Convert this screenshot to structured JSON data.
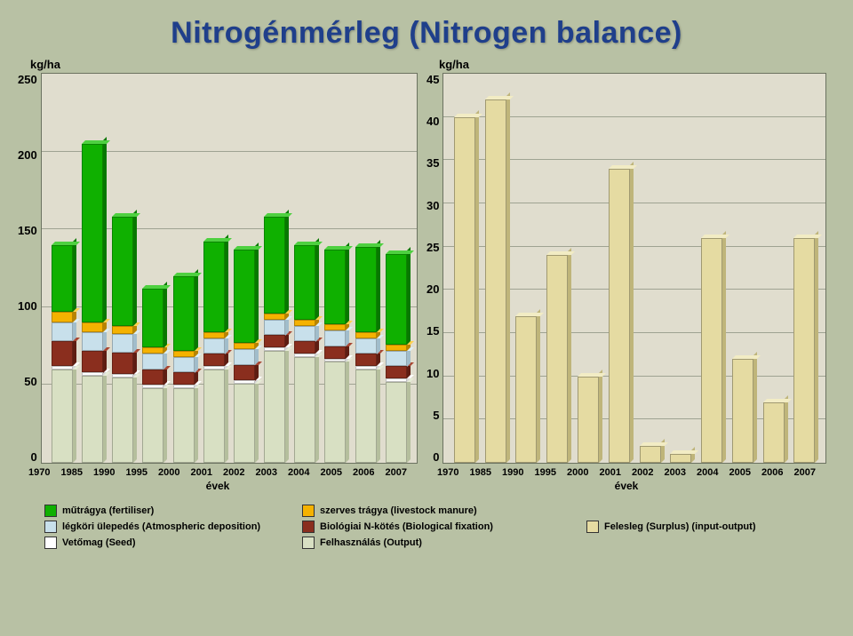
{
  "title": "Nitrogénmérleg (Nitrogen balance)",
  "title_color": "#1f3f8b",
  "background_color": "#b8c1a4",
  "plot_background_color": "#e0ddce",
  "grid_color": "#9fa392",
  "left_chart": {
    "type": "stacked-bar-3d",
    "axis_label": "kg/ha",
    "x_title": "évek",
    "categories": [
      "1970",
      "1985",
      "1990",
      "1995",
      "2000",
      "2001",
      "2002",
      "2003",
      "2004",
      "2005",
      "2006",
      "2007"
    ],
    "ymin": 0,
    "ymax": 250,
    "ytick_step": 50,
    "series": [
      {
        "key": "felhasznalas",
        "label": "Felhasználás (Output)",
        "color": "#d8e0c3",
        "color_top": "#e6ecd6",
        "color_side": "#b5bf9d",
        "values": [
          60,
          56,
          55,
          48,
          48,
          60,
          51,
          72,
          68,
          65,
          60,
          52
        ]
      },
      {
        "key": "vetomag",
        "label": "Vetőmag (Seed)",
        "color": "#ffffff",
        "color_top": "#ffffff",
        "color_side": "#d5d5d5",
        "values": [
          2,
          2,
          2,
          2,
          2,
          2,
          2,
          2,
          2,
          2,
          2,
          2
        ]
      },
      {
        "key": "biologiai",
        "label": "Biológiai N-kötés (Biological fixation)",
        "color": "#8a2e1e",
        "color_top": "#a84733",
        "color_side": "#5e1d12",
        "values": [
          16,
          14,
          14,
          10,
          8,
          8,
          10,
          8,
          8,
          8,
          8,
          8
        ]
      },
      {
        "key": "legkori",
        "label": "légköri ülepedés (Atmospheric deposition)",
        "color": "#c8e0eb",
        "color_top": "#dceef5",
        "color_side": "#a1bdcb",
        "values": [
          12,
          12,
          12,
          10,
          10,
          10,
          10,
          10,
          10,
          10,
          10,
          10
        ]
      },
      {
        "key": "szerves",
        "label": "szerves trágya (livestock manure)",
        "color": "#f5b200",
        "color_top": "#ffd14d",
        "color_side": "#b88400",
        "values": [
          7,
          6,
          5,
          4,
          4,
          4,
          4,
          4,
          4,
          4,
          4,
          4
        ]
      },
      {
        "key": "mutragya",
        "label": "műtrágya (fertiliser)",
        "color": "#0fb000",
        "color_top": "#4ed040",
        "color_side": "#087800",
        "values": [
          43,
          115,
          70,
          38,
          48,
          58,
          60,
          62,
          48,
          48,
          55,
          58
        ]
      }
    ]
  },
  "right_chart": {
    "type": "bar-3d",
    "axis_label": "kg/ha",
    "x_title": "évek",
    "categories": [
      "1970",
      "1985",
      "1990",
      "1995",
      "2000",
      "2001",
      "2002",
      "2003",
      "2004",
      "2005",
      "2006",
      "2007"
    ],
    "ymin": 0,
    "ymax": 45,
    "ytick_step": 5,
    "series_label": "Felesleg (Surplus) (input-output)",
    "bar_color": "#e5dba2",
    "bar_color_top": "#f2ecc4",
    "bar_color_side": "#bfb57a",
    "values": [
      40,
      42,
      17,
      24,
      10,
      34,
      2,
      1,
      26,
      12,
      7,
      26
    ]
  },
  "legend": {
    "left_items": [
      {
        "key": "mutragya",
        "swatch": "#0fb000"
      },
      {
        "key": "szerves",
        "swatch": "#f5b200"
      },
      {
        "key": "legkori",
        "swatch": "#c8e0eb"
      },
      {
        "key": "biologiai",
        "swatch": "#8a2e1e"
      },
      {
        "key": "vetomag",
        "swatch": "#ffffff"
      },
      {
        "key": "felhasznalas",
        "swatch": "#d8e0c3"
      }
    ],
    "right_items": [
      {
        "label": "Felesleg (Surplus) (input-output)",
        "swatch": "#e5dba2"
      }
    ]
  },
  "fonts": {
    "title_size": 34,
    "axis_size": 13,
    "tick_size": 11,
    "legend_size": 11
  }
}
